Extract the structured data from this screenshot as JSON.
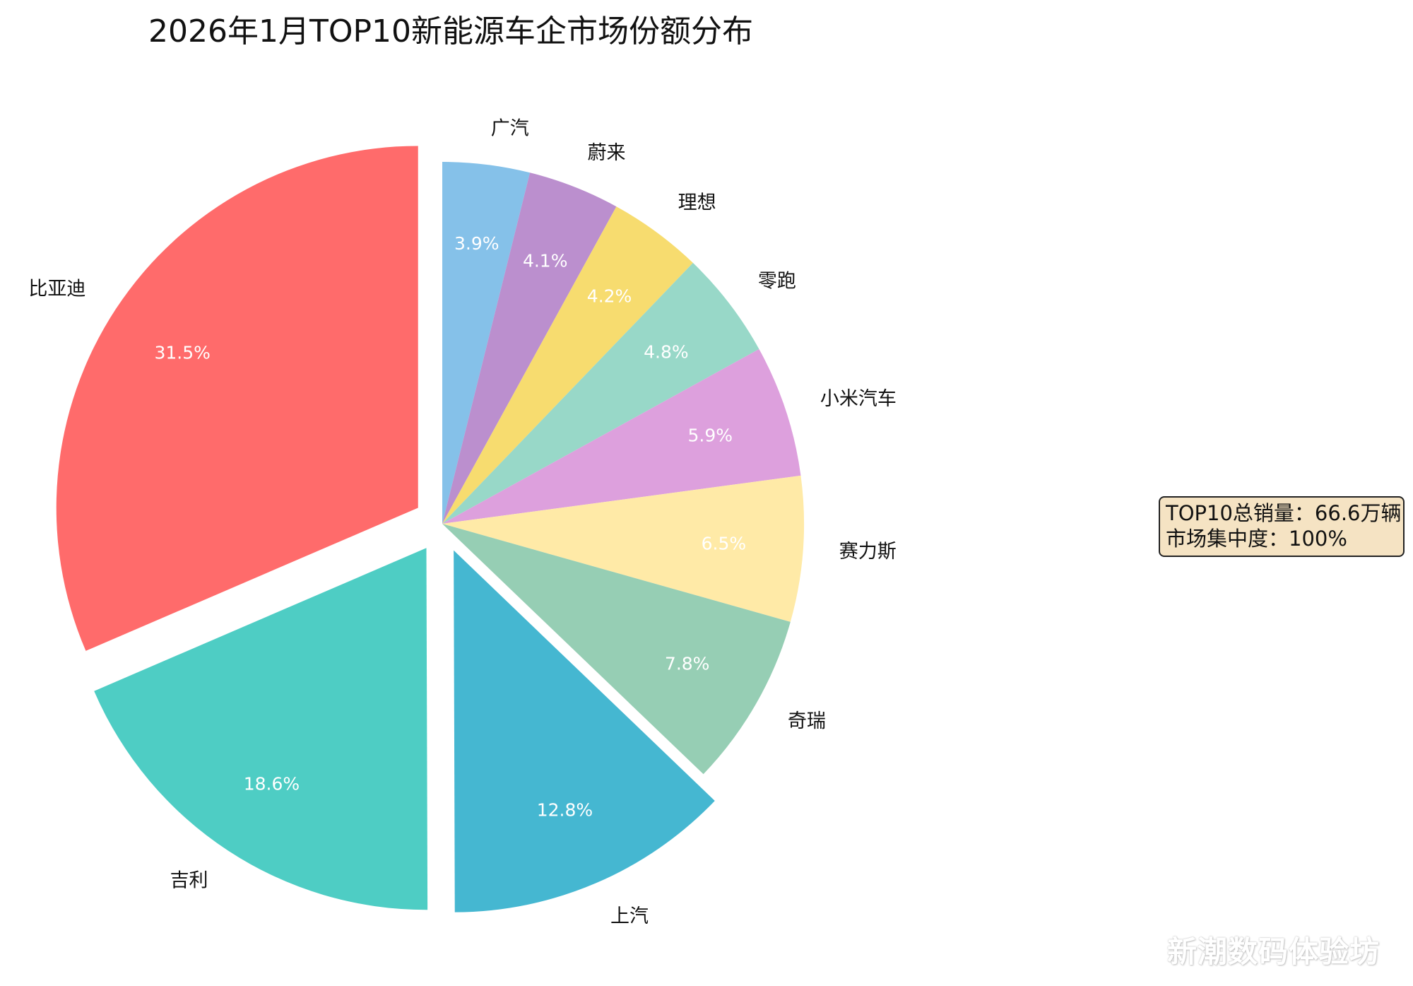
{
  "chart_data": {
    "type": "pie",
    "title": "2026年1月TOP10新能源车企市场份额分布",
    "start_angle_deg": 90,
    "direction": "clockwise",
    "slices": [
      {
        "label": "广汽",
        "value": 3.9,
        "pct_label": "3.9%",
        "color": "#85c1e9",
        "exploded": false
      },
      {
        "label": "蔚来",
        "value": 4.1,
        "pct_label": "4.1%",
        "color": "#bb8fce",
        "exploded": false
      },
      {
        "label": "理想",
        "value": 4.2,
        "pct_label": "4.2%",
        "color": "#f7dc6f",
        "exploded": false
      },
      {
        "label": "零跑",
        "value": 4.8,
        "pct_label": "4.8%",
        "color": "#98d8c8",
        "exploded": false
      },
      {
        "label": "小米汽车",
        "value": 5.9,
        "pct_label": "5.9%",
        "color": "#dda0dd",
        "exploded": false
      },
      {
        "label": "赛力斯",
        "value": 6.5,
        "pct_label": "6.5%",
        "color": "#ffeaa7",
        "exploded": false
      },
      {
        "label": "奇瑞",
        "value": 7.8,
        "pct_label": "7.8%",
        "color": "#96ceb4",
        "exploded": false
      },
      {
        "label": "上汽",
        "value": 12.8,
        "pct_label": "12.8%",
        "color": "#45b7d1",
        "exploded": true
      },
      {
        "label": "吉利",
        "value": 18.6,
        "pct_label": "18.6%",
        "color": "#4ecdc4",
        "exploded": true
      },
      {
        "label": "比亚迪",
        "value": 31.5,
        "pct_label": "31.5%",
        "color": "#ff6b6b",
        "exploded": true
      }
    ]
  },
  "stats_box": {
    "line1": "TOP10总销量：66.6万辆",
    "line2": "市场集中度：100%"
  },
  "watermark": "新潮数码体验坊"
}
